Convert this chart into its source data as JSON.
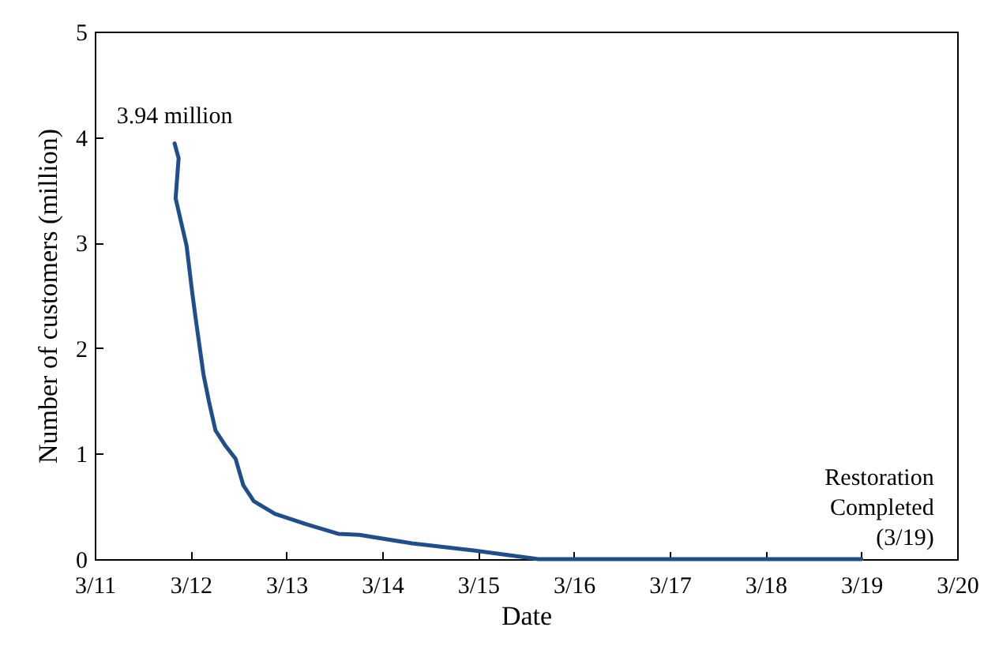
{
  "chart_data": {
    "type": "line",
    "xlabel": "Date",
    "ylabel": "Number of customers (million)",
    "x": [
      "--03-11T20:00",
      "--03-11T21:00",
      "--03-11T20:15",
      "--03-11T23:00",
      "--03-12T00:20",
      "--03-12T01:12",
      "--03-12T03:14",
      "--03-12T04:34",
      "--03-12T06:14",
      "--03-12T08:38",
      "--03-12T11:17",
      "--03-12T13:12",
      "--03-12T15:50",
      "--03-12T21:07",
      "--03-13T05:02",
      "--03-13T12:58",
      "--03-13T18:14",
      "--03-14T07:26",
      "--03-14T23:17",
      "--03-15T15:07",
      "--03-19T00:00"
    ],
    "series": [
      {
        "color": "#1f4e8c",
        "values": [
          3.94,
          3.8,
          3.42,
          2.97,
          2.55,
          2.3,
          1.75,
          1.5,
          1.22,
          1.08,
          0.95,
          0.7,
          0.55,
          0.43,
          0.33,
          0.24,
          0.23,
          0.15,
          0.08,
          0,
          0
        ]
      }
    ],
    "xlim": [
      "--03-11",
      "--03-20"
    ],
    "xticks": [
      {
        "value": "--03-11",
        "label": "3/11"
      },
      {
        "value": "--03-12",
        "label": "3/12"
      },
      {
        "value": "--03-13",
        "label": "3/13"
      },
      {
        "value": "--03-14",
        "label": "3/14"
      },
      {
        "value": "--03-15",
        "label": "3/15"
      },
      {
        "value": "--03-16",
        "label": "3/16"
      },
      {
        "value": "--03-17",
        "label": "3/17"
      },
      {
        "value": "--03-18",
        "label": "3/18"
      },
      {
        "value": "--03-19",
        "label": "3/19"
      },
      {
        "value": "--03-20",
        "label": "3/20"
      }
    ],
    "ylim": [
      0,
      5
    ],
    "yticks": [
      0,
      1,
      2,
      3,
      4,
      5
    ],
    "grid": false,
    "marker": "none",
    "line_style": "solid",
    "annotations": [
      {
        "text": "3.94 million",
        "x": "--03-11T20:00",
        "y": 3.94
      },
      {
        "text": "Restoration\nCompleted\n(3/19)",
        "x": "--03-19T00:00",
        "y": 0
      }
    ]
  }
}
